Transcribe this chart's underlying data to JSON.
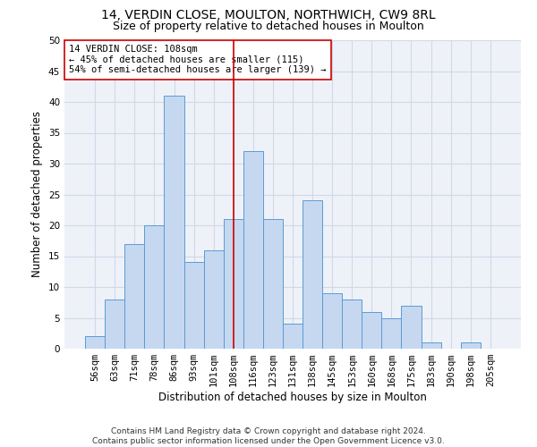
{
  "title1": "14, VERDIN CLOSE, MOULTON, NORTHWICH, CW9 8RL",
  "title2": "Size of property relative to detached houses in Moulton",
  "xlabel": "Distribution of detached houses by size in Moulton",
  "ylabel": "Number of detached properties",
  "categories": [
    "56sqm",
    "63sqm",
    "71sqm",
    "78sqm",
    "86sqm",
    "93sqm",
    "101sqm",
    "108sqm",
    "116sqm",
    "123sqm",
    "131sqm",
    "138sqm",
    "145sqm",
    "153sqm",
    "160sqm",
    "168sqm",
    "175sqm",
    "183sqm",
    "190sqm",
    "198sqm",
    "205sqm"
  ],
  "values": [
    2,
    8,
    17,
    20,
    41,
    14,
    16,
    21,
    32,
    21,
    4,
    24,
    9,
    8,
    6,
    5,
    7,
    1,
    0,
    1,
    0
  ],
  "bar_color": "#c5d8f0",
  "bar_edge_color": "#5b9bd5",
  "vline_x": 7,
  "vline_color": "#cc0000",
  "annotation_line1": "14 VERDIN CLOSE: 108sqm",
  "annotation_line2": "← 45% of detached houses are smaller (115)",
  "annotation_line3": "54% of semi-detached houses are larger (139) →",
  "annotation_box_color": "#ffffff",
  "annotation_box_edge": "#cc0000",
  "ylim": [
    0,
    50
  ],
  "yticks": [
    0,
    5,
    10,
    15,
    20,
    25,
    30,
    35,
    40,
    45,
    50
  ],
  "grid_color": "#d0d8e8",
  "background_color": "#eef2f8",
  "footer": "Contains HM Land Registry data © Crown copyright and database right 2024.\nContains public sector information licensed under the Open Government Licence v3.0.",
  "title1_fontsize": 10,
  "title2_fontsize": 9,
  "xlabel_fontsize": 8.5,
  "ylabel_fontsize": 8.5,
  "tick_fontsize": 7.5,
  "annotation_fontsize": 7.5,
  "footer_fontsize": 6.5
}
